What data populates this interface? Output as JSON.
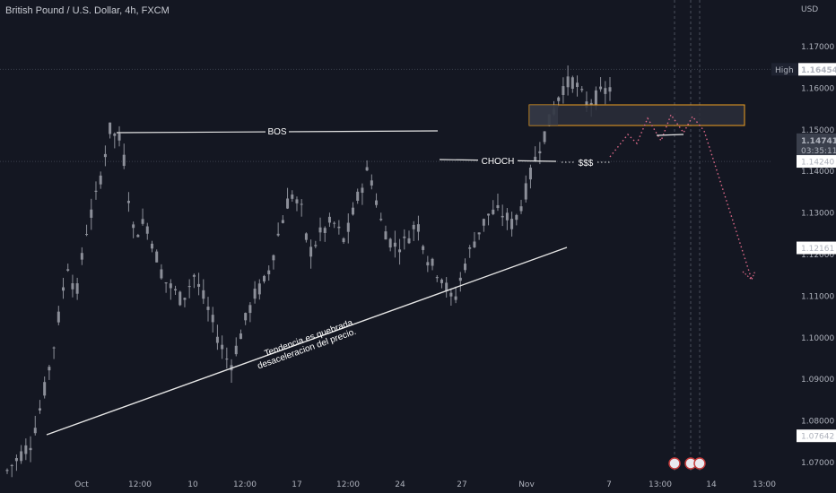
{
  "header": {
    "title": "British Pound / U.S. Dollar, 4h, FXCM",
    "currency": "USD"
  },
  "colors": {
    "background": "#141722",
    "candle": "#8c8f99",
    "trendline": "#e6e6e6",
    "zone_fill": "#2a2e3a",
    "zone_border": "#f0a020",
    "projection": "#e06a8a"
  },
  "chart_data": {
    "type": "candlestick",
    "title": "British Pound / U.S. Dollar, 4h, FXCM",
    "y_axis": {
      "label": "USD",
      "ylim": [
        1.0665,
        1.179
      ],
      "ticks": [
        "1.17000",
        "1.16000",
        "1.15000",
        "1.14000",
        "1.13000",
        "1.12000",
        "1.11000",
        "1.10000",
        "1.09000",
        "1.08000",
        "1.07000"
      ],
      "tick_values": [
        1.17,
        1.16,
        1.15,
        1.14,
        1.13,
        1.12,
        1.11,
        1.1,
        1.09,
        1.08,
        1.07
      ]
    },
    "x_axis": {
      "ticks": [
        "Oct",
        "12:00",
        "10",
        "12:00",
        "17",
        "12:00",
        "24",
        "27",
        "Nov",
        "7",
        "13:00",
        "14",
        "13:00"
      ]
    },
    "price_labels": [
      {
        "label": "High",
        "value": "1.16454",
        "highlight": true
      },
      {
        "value": "1.14741",
        "sub": "03:35:11",
        "current": true
      },
      {
        "value": "1.14240"
      },
      {
        "value": "1.12161"
      },
      {
        "value": "1.07642"
      }
    ],
    "price_path": [
      [
        0,
        1.068
      ],
      [
        0.04,
        1.075
      ],
      [
        0.06,
        1.086
      ],
      [
        0.08,
        1.1
      ],
      [
        0.1,
        1.118
      ],
      [
        0.115,
        1.11
      ],
      [
        0.13,
        1.125
      ],
      [
        0.15,
        1.135
      ],
      [
        0.17,
        1.15
      ],
      [
        0.19,
        1.147
      ],
      [
        0.21,
        1.125
      ],
      [
        0.23,
        1.128
      ],
      [
        0.26,
        1.114
      ],
      [
        0.29,
        1.109
      ],
      [
        0.31,
        1.115
      ],
      [
        0.33,
        1.108
      ],
      [
        0.35,
        1.1
      ],
      [
        0.37,
        1.093
      ],
      [
        0.39,
        1.102
      ],
      [
        0.41,
        1.11
      ],
      [
        0.43,
        1.114
      ],
      [
        0.45,
        1.125
      ],
      [
        0.47,
        1.135
      ],
      [
        0.49,
        1.13
      ],
      [
        0.5,
        1.12
      ],
      [
        0.52,
        1.125
      ],
      [
        0.54,
        1.128
      ],
      [
        0.56,
        1.123
      ],
      [
        0.58,
        1.133
      ],
      [
        0.6,
        1.141
      ],
      [
        0.62,
        1.128
      ],
      [
        0.64,
        1.122
      ],
      [
        0.66,
        1.123
      ],
      [
        0.68,
        1.128
      ],
      [
        0.7,
        1.118
      ],
      [
        0.72,
        1.115
      ],
      [
        0.74,
        1.108
      ],
      [
        0.76,
        1.118
      ],
      [
        0.78,
        1.125
      ],
      [
        0.8,
        1.13
      ],
      [
        0.82,
        1.13
      ],
      [
        0.84,
        1.127
      ],
      [
        0.86,
        1.135
      ],
      [
        0.88,
        1.145
      ],
      [
        0.9,
        1.152
      ],
      [
        0.92,
        1.16
      ],
      [
        0.94,
        1.162
      ],
      [
        0.96,
        1.156
      ],
      [
        0.98,
        1.158
      ],
      [
        1.0,
        1.16
      ]
    ],
    "annotations": {
      "bos": "BOS",
      "choch": "CHOCH",
      "liquidity": "$$$",
      "trend_text_line1": "Tendencia es quebrada",
      "trend_text_line2": "desaceleracion del precio."
    }
  }
}
